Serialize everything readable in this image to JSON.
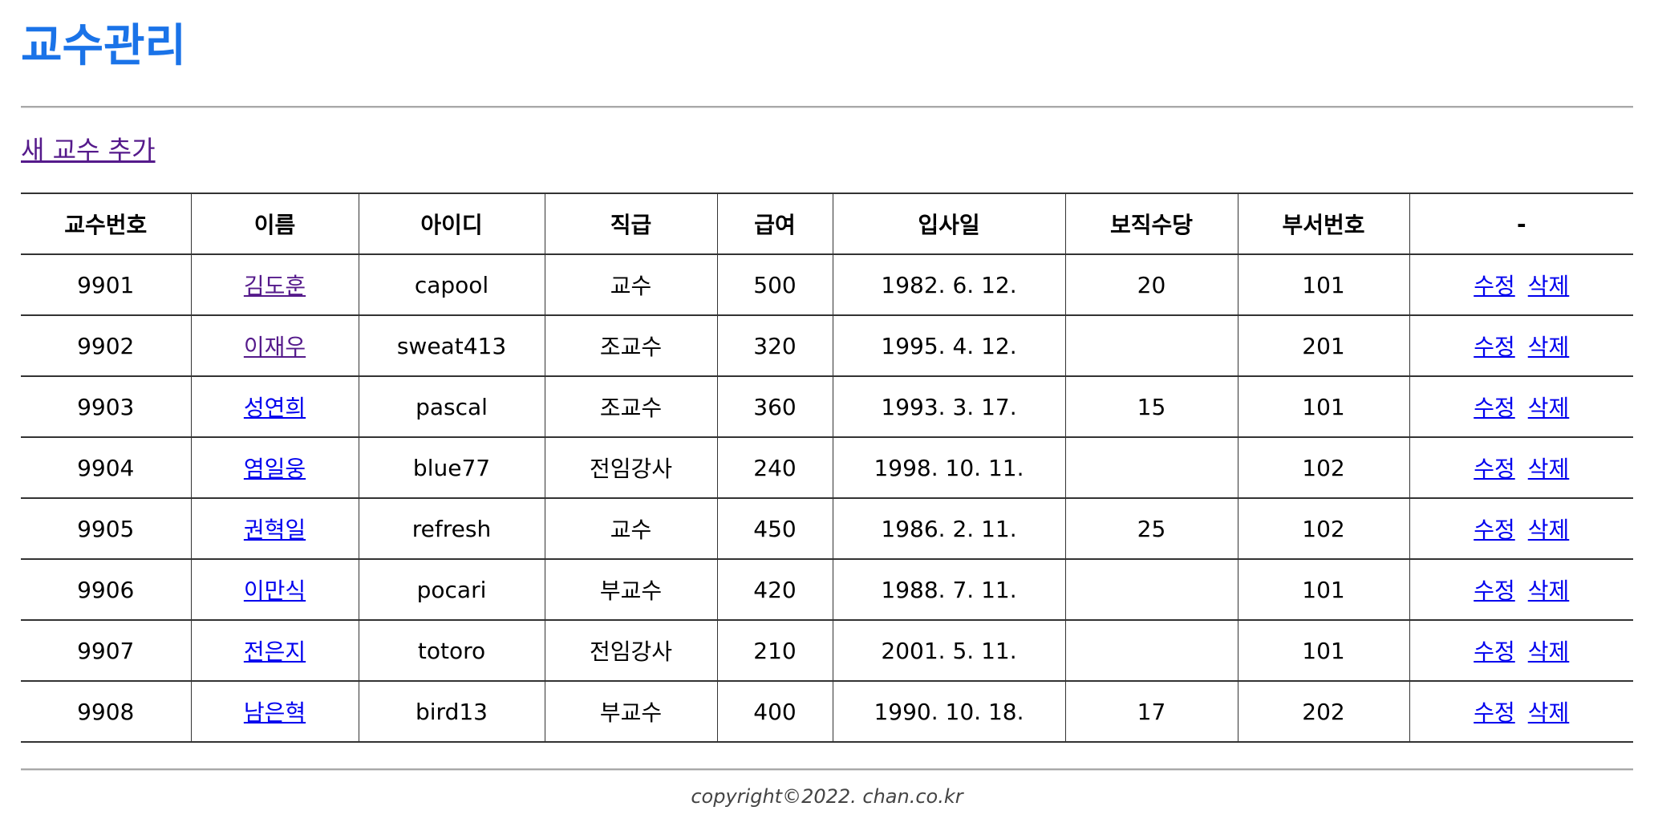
{
  "page": {
    "title": "교수관리",
    "add_link_label": "새 교수 추가",
    "footer": "copyright©2022. chan.co.kr"
  },
  "colors": {
    "title": "#1a73e8",
    "visited_link": "#551a8b",
    "link": "#0000ee"
  },
  "table": {
    "headers": [
      "교수번호",
      "이름",
      "아이디",
      "직급",
      "급여",
      "입사일",
      "보직수당",
      "부서번호",
      "-"
    ],
    "edit_label": "수정",
    "delete_label": "삭제",
    "rows": [
      {
        "no": "9901",
        "name": "김도훈",
        "id": "capool",
        "rank": "교수",
        "pay": "500",
        "hiredate": "1982. 6. 12.",
        "bonus": "20",
        "deptno": "101",
        "name_visited": true
      },
      {
        "no": "9902",
        "name": "이재우",
        "id": "sweat413",
        "rank": "조교수",
        "pay": "320",
        "hiredate": "1995. 4. 12.",
        "bonus": "",
        "deptno": "201",
        "name_visited": true
      },
      {
        "no": "9903",
        "name": "성연희",
        "id": "pascal",
        "rank": "조교수",
        "pay": "360",
        "hiredate": "1993. 3. 17.",
        "bonus": "15",
        "deptno": "101",
        "name_visited": false
      },
      {
        "no": "9904",
        "name": "염일웅",
        "id": "blue77",
        "rank": "전임강사",
        "pay": "240",
        "hiredate": "1998. 10. 11.",
        "bonus": "",
        "deptno": "102",
        "name_visited": false
      },
      {
        "no": "9905",
        "name": "권혁일",
        "id": "refresh",
        "rank": "교수",
        "pay": "450",
        "hiredate": "1986. 2. 11.",
        "bonus": "25",
        "deptno": "102",
        "name_visited": false
      },
      {
        "no": "9906",
        "name": "이만식",
        "id": "pocari",
        "rank": "부교수",
        "pay": "420",
        "hiredate": "1988. 7. 11.",
        "bonus": "",
        "deptno": "101",
        "name_visited": false
      },
      {
        "no": "9907",
        "name": "전은지",
        "id": "totoro",
        "rank": "전임강사",
        "pay": "210",
        "hiredate": "2001. 5. 11.",
        "bonus": "",
        "deptno": "101",
        "name_visited": false
      },
      {
        "no": "9908",
        "name": "남은혁",
        "id": "bird13",
        "rank": "부교수",
        "pay": "400",
        "hiredate": "1990. 10. 18.",
        "bonus": "17",
        "deptno": "202",
        "name_visited": false
      }
    ]
  }
}
